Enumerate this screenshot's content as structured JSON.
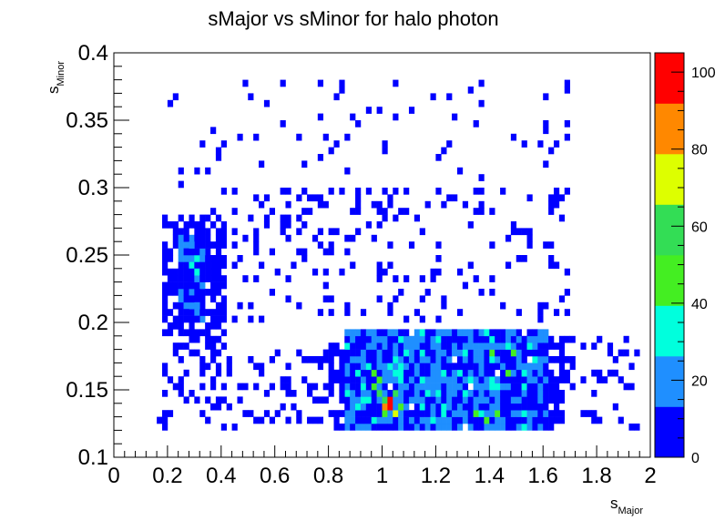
{
  "chart_data": {
    "type": "heatmap",
    "title": "sMajor vs sMinor for halo photon",
    "xlabel": {
      "main": "s",
      "sub": "Major"
    },
    "ylabel": {
      "main": "s",
      "sub": "Minor"
    },
    "xlim": [
      0,
      2
    ],
    "ylim": [
      0.1,
      0.4
    ],
    "x_ticks": [
      0,
      0.2,
      0.4,
      0.6,
      0.8,
      1,
      1.2,
      1.4,
      1.6,
      1.8,
      2
    ],
    "x_tick_labels": [
      "0",
      "0.2",
      "0.4",
      "0.6",
      "0.8",
      "1",
      "1.2",
      "1.4",
      "1.6",
      "1.8",
      "2"
    ],
    "y_ticks": [
      0.1,
      0.15,
      0.2,
      0.25,
      0.3,
      0.35,
      0.4
    ],
    "y_tick_labels": [
      "0.1",
      "0.15",
      "0.2",
      "0.25",
      "0.3",
      "0.35",
      "0.4"
    ],
    "z_range": [
      0,
      105
    ],
    "z_ticks": [
      0,
      20,
      40,
      60,
      80,
      100
    ],
    "z_tick_labels": [
      "0",
      "20",
      "40",
      "60",
      "80",
      "100"
    ],
    "colors": [
      "#0000ff",
      "#1f8fff",
      "#00ffdd",
      "#44ee22",
      "#33dd55",
      "#ddff00",
      "#ff8800",
      "#ff0000"
    ],
    "bins": {
      "nx": 100,
      "ny": 60,
      "dx": 0.02,
      "dy": 0.005
    },
    "cells_note": "approximate reconstruction of visible bins [x_center, y_center, count]",
    "cells": [
      [
        1.03,
        0.1375,
        100
      ],
      [
        1.03,
        0.1425,
        92
      ],
      [
        1.01,
        0.1375,
        85
      ],
      [
        1.05,
        0.1325,
        78
      ],
      [
        1.01,
        0.1425,
        62
      ],
      [
        0.99,
        0.1475,
        58
      ],
      [
        1.05,
        0.1475,
        55
      ],
      [
        0.97,
        0.1525,
        50
      ],
      [
        0.99,
        0.1575,
        45
      ],
      [
        1.07,
        0.1375,
        48
      ],
      [
        1.01,
        0.1325,
        52
      ],
      [
        0.97,
        0.1625,
        42
      ],
      [
        1.49,
        0.1775,
        46
      ],
      [
        1.41,
        0.1775,
        44
      ],
      [
        1.47,
        0.1625,
        40
      ],
      [
        1.35,
        0.1325,
        42
      ],
      [
        1.39,
        0.1275,
        40
      ],
      [
        1.43,
        0.1325,
        45
      ],
      [
        1.53,
        0.1325,
        38
      ],
      [
        0.31,
        0.2475,
        34
      ],
      [
        0.29,
        0.2425,
        30
      ],
      [
        0.31,
        0.2375,
        28
      ],
      [
        0.29,
        0.2575,
        26
      ]
    ]
  }
}
